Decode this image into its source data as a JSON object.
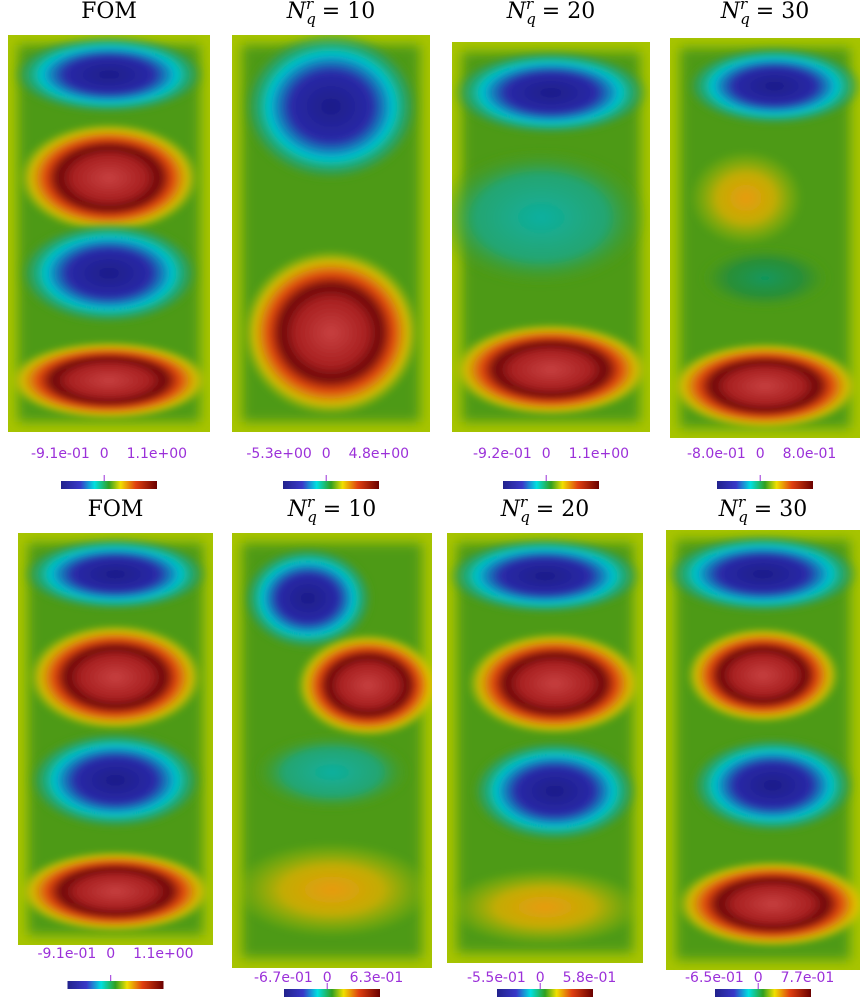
{
  "panels": [
    {
      "title": {
        "text": "FOM"
      },
      "colorbar": [
        "-9.1e-01",
        "0",
        "1.1e+00"
      ]
    },
    {
      "title": {
        "base": "N",
        "sup": "r",
        "sub": "q",
        "eq": "= 10"
      },
      "colorbar": [
        "-5.3e+00",
        "0",
        "4.8e+00"
      ]
    },
    {
      "title": {
        "base": "N",
        "sup": "r",
        "sub": "q",
        "eq": "= 20"
      },
      "colorbar": [
        "-9.2e-01",
        "0",
        "1.1e+00"
      ]
    },
    {
      "title": {
        "base": "N",
        "sup": "r",
        "sub": "q",
        "eq": "= 30"
      },
      "colorbar": [
        "-8.0e-01",
        "0",
        "8.0e-01"
      ]
    },
    {
      "title": {
        "text": "FOM"
      },
      "colorbar": [
        "-9.1e-01",
        "0",
        "1.1e+00"
      ]
    },
    {
      "title": {
        "base": "N",
        "sup": "r",
        "sub": "q",
        "eq": "= 10"
      },
      "colorbar": [
        "-6.7e-01",
        "0",
        "6.3e-01"
      ]
    },
    {
      "title": {
        "base": "N",
        "sup": "r",
        "sub": "q",
        "eq": "= 20"
      },
      "colorbar": [
        "-5.5e-01",
        "0",
        "5.8e-01"
      ]
    },
    {
      "title": {
        "base": "N",
        "sup": "r",
        "sub": "q",
        "eq": "= 30"
      },
      "colorbar": [
        "-6.5e-01",
        "0",
        "7.7e-01"
      ]
    }
  ]
}
